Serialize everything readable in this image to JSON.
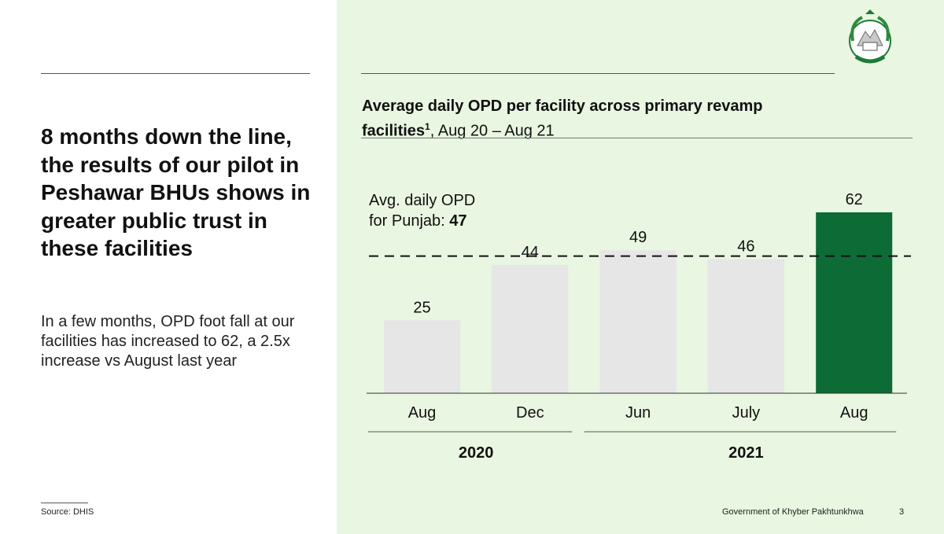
{
  "slide": {
    "headline": "8 months down the line, the results of our pilot in Peshawar BHUs shows in greater public trust in these facilities",
    "body": "In a few months, OPD foot fall at our facilities has increased to 62, a 2.5x increase vs August last year",
    "source": "Source: DHIS",
    "footer_org": "Government of Khyber Pakhtunkhwa",
    "page_number": "3",
    "emblem_icon": "government-emblem-icon"
  },
  "chart_data": {
    "type": "bar",
    "title_bold": "Average daily OPD per facility across primary revamp facilities",
    "title_superscript": "1",
    "title_regular": ", Aug 20 – Aug 21",
    "categories": [
      "Aug",
      "Dec",
      "Jun",
      "July",
      "Aug"
    ],
    "values": [
      25,
      44,
      49,
      46,
      62
    ],
    "groups": [
      {
        "label": "2020",
        "categories": [
          "Aug",
          "Dec"
        ]
      },
      {
        "label": "2021",
        "categories": [
          "Jun",
          "July",
          "Aug"
        ]
      }
    ],
    "reference_line": {
      "label": "Avg. daily OPD for Punjab: ",
      "value": 47
    },
    "ylim": [
      0,
      62
    ],
    "colors": {
      "default_bar": "#e6e6e6",
      "highlight_bar": "#0d6b35",
      "reference_line": "#111111"
    },
    "highlight_index": 4
  }
}
